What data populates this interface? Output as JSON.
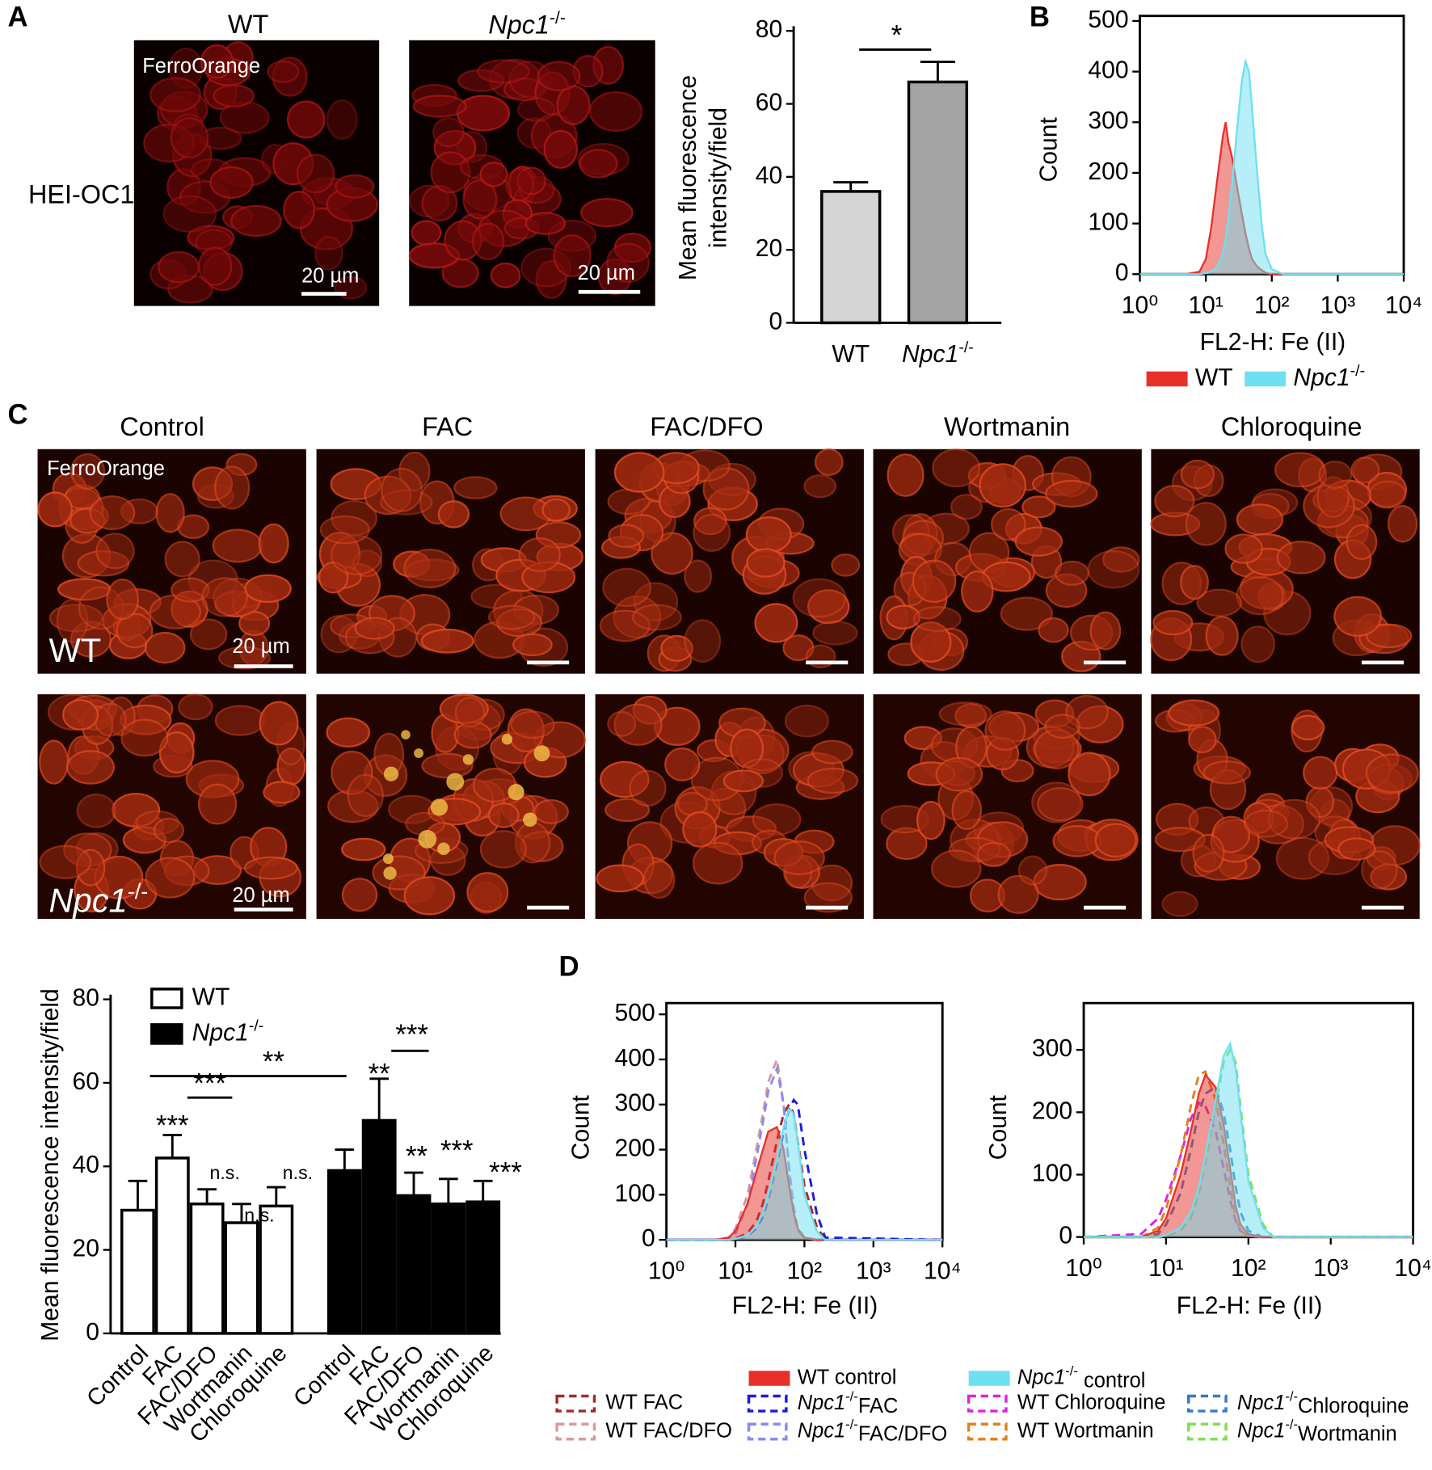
{
  "panel_labels": [
    "A",
    "B",
    "C",
    "D"
  ],
  "panel_a_images": {
    "columns": [
      "WT",
      "Npc1-/-"
    ],
    "row": "HEI-OC1",
    "stain": "FerroOrange",
    "scale": "20 µm"
  },
  "panel_c_images": {
    "columns": [
      "Control",
      "FAC",
      "FAC/DFO",
      "Wortmanin",
      "Chloroquine"
    ],
    "rows": [
      "WT",
      "Npc1-/-"
    ],
    "stain": "FerroOrange",
    "scale": "20 µm"
  },
  "chart_data": [
    {
      "type": "bar",
      "categories": [
        "WT",
        "Npc1-/-"
      ],
      "values": [
        36,
        66
      ],
      "errors": [
        2.5,
        5.5
      ],
      "colors": [
        "#d4d4d4",
        "#a3a3a3"
      ],
      "ylabel": "Mean fluorescence intensity/field",
      "ylim": [
        0,
        80
      ],
      "yticks": [
        0,
        20,
        40,
        60,
        80
      ],
      "annotations": [
        "*"
      ]
    },
    {
      "type": "area",
      "xscale": "log",
      "xlabel": "FL2-H: Fe (II)",
      "ylabel": "Count",
      "x": [
        1,
        5,
        8,
        10,
        12,
        15,
        18,
        20,
        22,
        25,
        30,
        35,
        40,
        45,
        50,
        60,
        70,
        80,
        100,
        150,
        10000
      ],
      "series": [
        {
          "name": "WT",
          "color": "#e8302a",
          "style": "filled",
          "values": [
            0,
            0,
            5,
            30,
            90,
            190,
            270,
            300,
            260,
            230,
            170,
            120,
            80,
            50,
            30,
            15,
            8,
            3,
            0,
            0,
            0
          ]
        },
        {
          "name": "Npc1-/-",
          "color": "#6ee0f0",
          "style": "filled",
          "values": [
            0,
            0,
            0,
            2,
            5,
            15,
            40,
            70,
            110,
            180,
            290,
            380,
            420,
            400,
            330,
            200,
            100,
            40,
            10,
            0,
            0
          ]
        }
      ],
      "xlim": [
        1,
        10000
      ],
      "xticks": [
        {
          "value": 1,
          "label": "10⁰"
        },
        {
          "value": 10,
          "label": "10¹"
        },
        {
          "value": 100,
          "label": "10²"
        },
        {
          "value": 1000,
          "label": "10³"
        },
        {
          "value": 10000,
          "label": "10⁴"
        }
      ],
      "ylim": [
        0,
        510
      ],
      "yticks": [
        0,
        100,
        200,
        300,
        400,
        500
      ]
    },
    {
      "type": "bar",
      "categories": [
        "Control",
        "FAC",
        "FAC/DFO",
        "Wortmanin",
        "Chloroquine"
      ],
      "series": [
        {
          "name": "WT",
          "color": "#ffffff",
          "values": [
            29.5,
            42,
            31,
            26.5,
            30.5
          ],
          "errors": [
            7,
            5.5,
            3.5,
            4.5,
            4.5
          ]
        },
        {
          "name": "Npc1-/-",
          "color": "#000000",
          "values": [
            39,
            51,
            33,
            31,
            31.5
          ],
          "errors": [
            5,
            10,
            5.5,
            6,
            5
          ]
        }
      ],
      "ylabel": "Mean fluorescence intensity/field",
      "ylim": [
        0,
        80
      ],
      "yticks": [
        0,
        20,
        40,
        60,
        80
      ],
      "annotations": [
        "***",
        "n.s.",
        "n.s.",
        "n.s.",
        "**",
        "**",
        "***",
        "***",
        "***",
        "**",
        "***"
      ]
    },
    {
      "type": "area",
      "xscale": "log",
      "xlabel": "FL2-H: Fe (II)",
      "ylabel": "Count",
      "x": [
        1,
        5,
        8,
        10,
        15,
        20,
        25,
        30,
        40,
        50,
        60,
        70,
        80,
        100,
        150,
        200,
        10000
      ],
      "series": [
        {
          "name": "WT control",
          "color": "#e8302a",
          "style": "filled",
          "values": [
            0,
            0,
            5,
            20,
            80,
            150,
            200,
            240,
            250,
            200,
            120,
            60,
            25,
            5,
            0,
            0,
            0
          ]
        },
        {
          "name": "Npc1-/- control",
          "color": "#6ee0f0",
          "style": "filled",
          "values": [
            0,
            0,
            0,
            2,
            10,
            30,
            60,
            100,
            180,
            250,
            290,
            280,
            220,
            100,
            20,
            0,
            0
          ]
        },
        {
          "name": "WT FAC",
          "color": "#a52a2a",
          "style": "dashed",
          "values": [
            0,
            0,
            0,
            3,
            15,
            40,
            80,
            130,
            220,
            280,
            300,
            280,
            220,
            120,
            30,
            0,
            0
          ]
        },
        {
          "name": "WT FAC/DFO",
          "color": "#d99a9a",
          "style": "dashed",
          "values": [
            0,
            0,
            5,
            25,
            100,
            200,
            280,
            350,
            400,
            300,
            150,
            60,
            20,
            5,
            0,
            0,
            0
          ]
        },
        {
          "name": "Npc1-/-FAC",
          "color": "#1a1ae0",
          "style": "dashed",
          "values": [
            0,
            0,
            0,
            2,
            8,
            25,
            50,
            90,
            170,
            240,
            290,
            310,
            300,
            200,
            60,
            5,
            0
          ]
        },
        {
          "name": "Npc1-/-FAC/DFO",
          "color": "#8a8af0",
          "style": "dashed",
          "values": [
            0,
            0,
            3,
            15,
            80,
            180,
            260,
            330,
            380,
            300,
            160,
            70,
            25,
            5,
            0,
            0,
            0
          ]
        }
      ],
      "xlim": [
        1,
        10000
      ],
      "xticks": [
        {
          "value": 1,
          "label": "10⁰"
        },
        {
          "value": 10,
          "label": "10¹"
        },
        {
          "value": 100,
          "label": "10²"
        },
        {
          "value": 1000,
          "label": "10³"
        },
        {
          "value": 10000,
          "label": "10⁴"
        }
      ],
      "ylim": [
        0,
        525
      ],
      "yticks": [
        0,
        100,
        200,
        300,
        400,
        500
      ]
    },
    {
      "type": "area",
      "xscale": "log",
      "xlabel": "FL2-H: Fe (II)",
      "ylabel": "Count",
      "x": [
        1,
        5,
        8,
        10,
        15,
        20,
        25,
        30,
        40,
        50,
        60,
        70,
        80,
        100,
        150,
        200,
        10000
      ],
      "series": [
        {
          "name": "WT control",
          "color": "#e8302a",
          "style": "filled",
          "values": [
            0,
            0,
            10,
            30,
            100,
            170,
            230,
            260,
            240,
            180,
            110,
            50,
            20,
            5,
            0,
            0,
            0
          ]
        },
        {
          "name": "Npc1-/- control",
          "color": "#6ee0f0",
          "style": "filled",
          "values": [
            0,
            0,
            0,
            3,
            15,
            40,
            80,
            130,
            220,
            290,
            310,
            270,
            200,
            90,
            15,
            0,
            0
          ]
        },
        {
          "name": "WT Chloroquine",
          "color": "#e020e0",
          "style": "dashed",
          "values": [
            0,
            5,
            30,
            60,
            130,
            190,
            215,
            210,
            170,
            110,
            60,
            25,
            10,
            2,
            0,
            0,
            0
          ]
        },
        {
          "name": "WT Wortmanin",
          "color": "#e08020",
          "style": "dashed",
          "values": [
            0,
            0,
            15,
            45,
            130,
            210,
            260,
            265,
            220,
            150,
            80,
            30,
            10,
            2,
            0,
            0,
            0
          ]
        },
        {
          "name": "Npc1-/-Chloroquine",
          "color": "#3878c8",
          "style": "dashed",
          "values": [
            0,
            0,
            5,
            20,
            70,
            140,
            200,
            230,
            240,
            200,
            140,
            80,
            40,
            10,
            0,
            0,
            0
          ]
        },
        {
          "name": "Npc1-/-Wortmanin",
          "color": "#80e050",
          "style": "dashed",
          "values": [
            0,
            0,
            0,
            2,
            10,
            30,
            70,
            120,
            210,
            280,
            300,
            280,
            210,
            100,
            20,
            0,
            0
          ]
        }
      ],
      "xlim": [
        1,
        10000
      ],
      "xticks": [
        {
          "value": 1,
          "label": "10⁰"
        },
        {
          "value": 10,
          "label": "10¹"
        },
        {
          "value": 100,
          "label": "10²"
        },
        {
          "value": 1000,
          "label": "10³"
        },
        {
          "value": 10000,
          "label": "10⁴"
        }
      ],
      "ylim": [
        0,
        375
      ],
      "yticks": [
        0,
        100,
        200,
        300
      ]
    }
  ]
}
